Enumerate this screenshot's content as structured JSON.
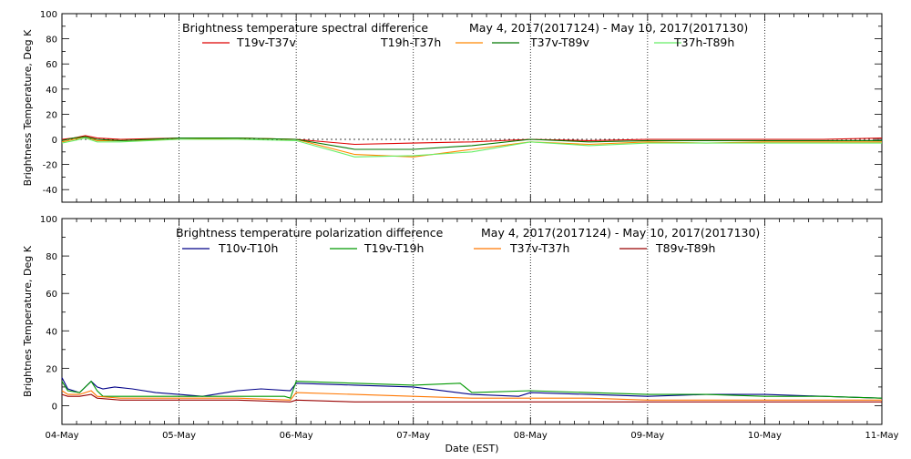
{
  "chart_data": [
    {
      "type": "line",
      "title": "Brightness temperature spectral difference",
      "date_range": "May  4, 2017(2017124) - May 10, 2017(2017130)",
      "ylabel": "Brightness Temperature, Deg K",
      "xlabel": "",
      "ylim": [
        -50,
        100
      ],
      "yticks": [
        -40,
        -20,
        0,
        20,
        40,
        60,
        80,
        100
      ],
      "xlim": [
        0,
        7
      ],
      "grid": "vertical dotted at each day",
      "legend_position": "top",
      "x_unit": "days since 04-May 00:00 EST",
      "series": [
        {
          "name": "T19v-T37v",
          "color": "#dd0000",
          "x": [
            0,
            0.1,
            0.2,
            0.3,
            0.5,
            1,
            1.5,
            2,
            2.5,
            3,
            3.5,
            4,
            4.5,
            5,
            5.5,
            6,
            6.5,
            7
          ],
          "values": [
            0,
            1,
            3,
            1,
            0,
            1,
            1,
            0,
            -4,
            -3,
            -2,
            0,
            -1,
            0,
            0,
            0,
            0,
            1
          ]
        },
        {
          "name": "T19h-T37h",
          "color": "#ff8800",
          "x": [
            0,
            0.1,
            0.2,
            0.3,
            0.5,
            1,
            1.5,
            2,
            2.5,
            3,
            3.5,
            4,
            4.5,
            5,
            5.5,
            6,
            6.5,
            7
          ],
          "values": [
            -2,
            0,
            2,
            -1,
            -1,
            0,
            1,
            0,
            -12,
            -14,
            -8,
            -2,
            -4,
            -2,
            -3,
            -2,
            -2,
            -2
          ]
        },
        {
          "name": "T37v-T89v",
          "color": "#007700",
          "x": [
            0,
            0.1,
            0.2,
            0.3,
            0.5,
            1,
            1.5,
            2,
            2.5,
            3,
            3.5,
            4,
            4.5,
            5,
            5.5,
            6,
            6.5,
            7
          ],
          "values": [
            -1,
            1,
            2,
            0,
            -1,
            1,
            1,
            0,
            -8,
            -8,
            -5,
            0,
            -2,
            -1,
            -1,
            -1,
            -1,
            -1
          ]
        },
        {
          "name": "T37h-T89h",
          "color": "#66ee66",
          "x": [
            0,
            0.1,
            0.2,
            0.3,
            0.5,
            1,
            1.5,
            2,
            2.5,
            3,
            3.5,
            4,
            4.5,
            5,
            5.5,
            6,
            6.5,
            7
          ],
          "values": [
            -3,
            -1,
            1,
            -2,
            -2,
            0,
            0,
            -1,
            -14,
            -13,
            -10,
            -2,
            -5,
            -3,
            -3,
            -3,
            -3,
            -3
          ]
        }
      ]
    },
    {
      "type": "line",
      "title": "Brightness temperature polarization difference",
      "date_range": "May  4, 2017(2017124) - May 10, 2017(2017130)",
      "ylabel": "Brightnes Temperature, Deg K",
      "xlabel": "Date (EST)",
      "ylim": [
        -10,
        100
      ],
      "yticks": [
        0,
        20,
        40,
        60,
        80,
        100
      ],
      "xlim": [
        0,
        7
      ],
      "grid": "vertical dotted at each day",
      "legend_position": "top",
      "x_unit": "days since 04-May 00:00 EST",
      "x_tick_labels": [
        "04-May",
        "05-May",
        "06-May",
        "07-May",
        "08-May",
        "09-May",
        "10-May",
        "11-May"
      ],
      "series": [
        {
          "name": "T10v-T10h",
          "color": "#000088",
          "x": [
            0,
            0.05,
            0.15,
            0.25,
            0.3,
            0.35,
            0.45,
            0.6,
            0.8,
            1,
            1.2,
            1.5,
            1.7,
            1.95,
            2,
            2.5,
            3,
            3.5,
            3.9,
            4,
            4.5,
            5,
            5.5,
            6,
            6.5,
            7
          ],
          "values": [
            15,
            9,
            7,
            13,
            10,
            9,
            10,
            9,
            7,
            6,
            5,
            8,
            9,
            8,
            12,
            11,
            10,
            6,
            5,
            7,
            6,
            5,
            6,
            6,
            5,
            4
          ]
        },
        {
          "name": "T19v-T19h",
          "color": "#009900",
          "x": [
            0,
            0.05,
            0.15,
            0.25,
            0.3,
            0.35,
            0.45,
            0.6,
            1,
            1.5,
            1.9,
            1.95,
            2,
            2.5,
            3,
            3.4,
            3.5,
            4,
            4.5,
            5,
            5.5,
            6,
            6.5,
            7
          ],
          "values": [
            13,
            8,
            7,
            13,
            8,
            5,
            5,
            5,
            5,
            5,
            5,
            4,
            13,
            12,
            11,
            12,
            7,
            8,
            7,
            6,
            6,
            5,
            5,
            4
          ]
        },
        {
          "name": "T37v-T37h",
          "color": "#ff7700",
          "x": [
            0,
            0.05,
            0.15,
            0.25,
            0.3,
            0.5,
            1,
            1.5,
            1.95,
            2,
            2.5,
            3,
            3.5,
            4,
            4.5,
            5,
            5.5,
            6,
            6.5,
            7
          ],
          "values": [
            8,
            6,
            6,
            8,
            5,
            4,
            4,
            4,
            3,
            7,
            6,
            5,
            4,
            4,
            4,
            3,
            3,
            3,
            3,
            3
          ]
        },
        {
          "name": "T89v-T89h",
          "color": "#990000",
          "x": [
            0,
            0.05,
            0.15,
            0.25,
            0.3,
            0.5,
            1,
            1.5,
            1.95,
            2,
            2.5,
            3,
            3.5,
            4,
            4.5,
            5,
            5.5,
            6,
            6.5,
            7
          ],
          "values": [
            6,
            5,
            5,
            6,
            4,
            3,
            3,
            3,
            2,
            3,
            2,
            2,
            2,
            2,
            2,
            2,
            2,
            2,
            2,
            2
          ]
        }
      ]
    }
  ]
}
